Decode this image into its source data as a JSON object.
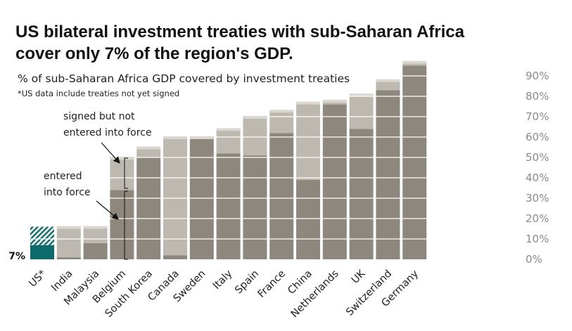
{
  "header": {
    "title": "US bilateral investment treaties with sub-Saharan Africa cover only 7% of the region's GDP.",
    "subtitle": "% of sub-Saharan Africa GDP covered by investment treaties",
    "note": "*US data include treaties not yet signed"
  },
  "annotations": {
    "signed_line1": "signed but not",
    "signed_line2": "entered into force",
    "entered_line1": "entered",
    "entered_line2": "into force",
    "us_value_label": "7%"
  },
  "colors": {
    "entered": "#8d877d",
    "signed": "#bdb9b0",
    "top_cap": "#dad7d0",
    "us_entered": "#0d6b6b",
    "us_hatch": "#0d6b6b"
  },
  "chart_data": {
    "type": "bar",
    "stacked": true,
    "categories": [
      "US*",
      "India",
      "Malaysia",
      "Belgium",
      "South Korea",
      "Canada",
      "Sweden",
      "Italy",
      "Spain",
      "France",
      "China",
      "Netherlands",
      "UK",
      "Switzerland",
      "Germany"
    ],
    "series": [
      {
        "name": "entered into force",
        "values": [
          7,
          1,
          8,
          34,
          50,
          2,
          59,
          52,
          51,
          62,
          39,
          76,
          64,
          83,
          95
        ]
      },
      {
        "name": "signed but not entered into force",
        "values": [
          9,
          15,
          8,
          16,
          5,
          58,
          1,
          12,
          19,
          11,
          38,
          2,
          17,
          5,
          2
        ]
      }
    ],
    "ylim": [
      0,
      97
    ],
    "yticks": [
      0,
      10,
      20,
      30,
      40,
      50,
      60,
      70,
      80,
      90
    ],
    "ytick_labels": [
      "0%",
      "10%",
      "20%",
      "30%",
      "40%",
      "50%",
      "60%",
      "70%",
      "80%",
      "90%"
    ],
    "y_axis_side": "right",
    "value_labels": [
      {
        "category": "US*",
        "text": "7%"
      }
    ]
  }
}
